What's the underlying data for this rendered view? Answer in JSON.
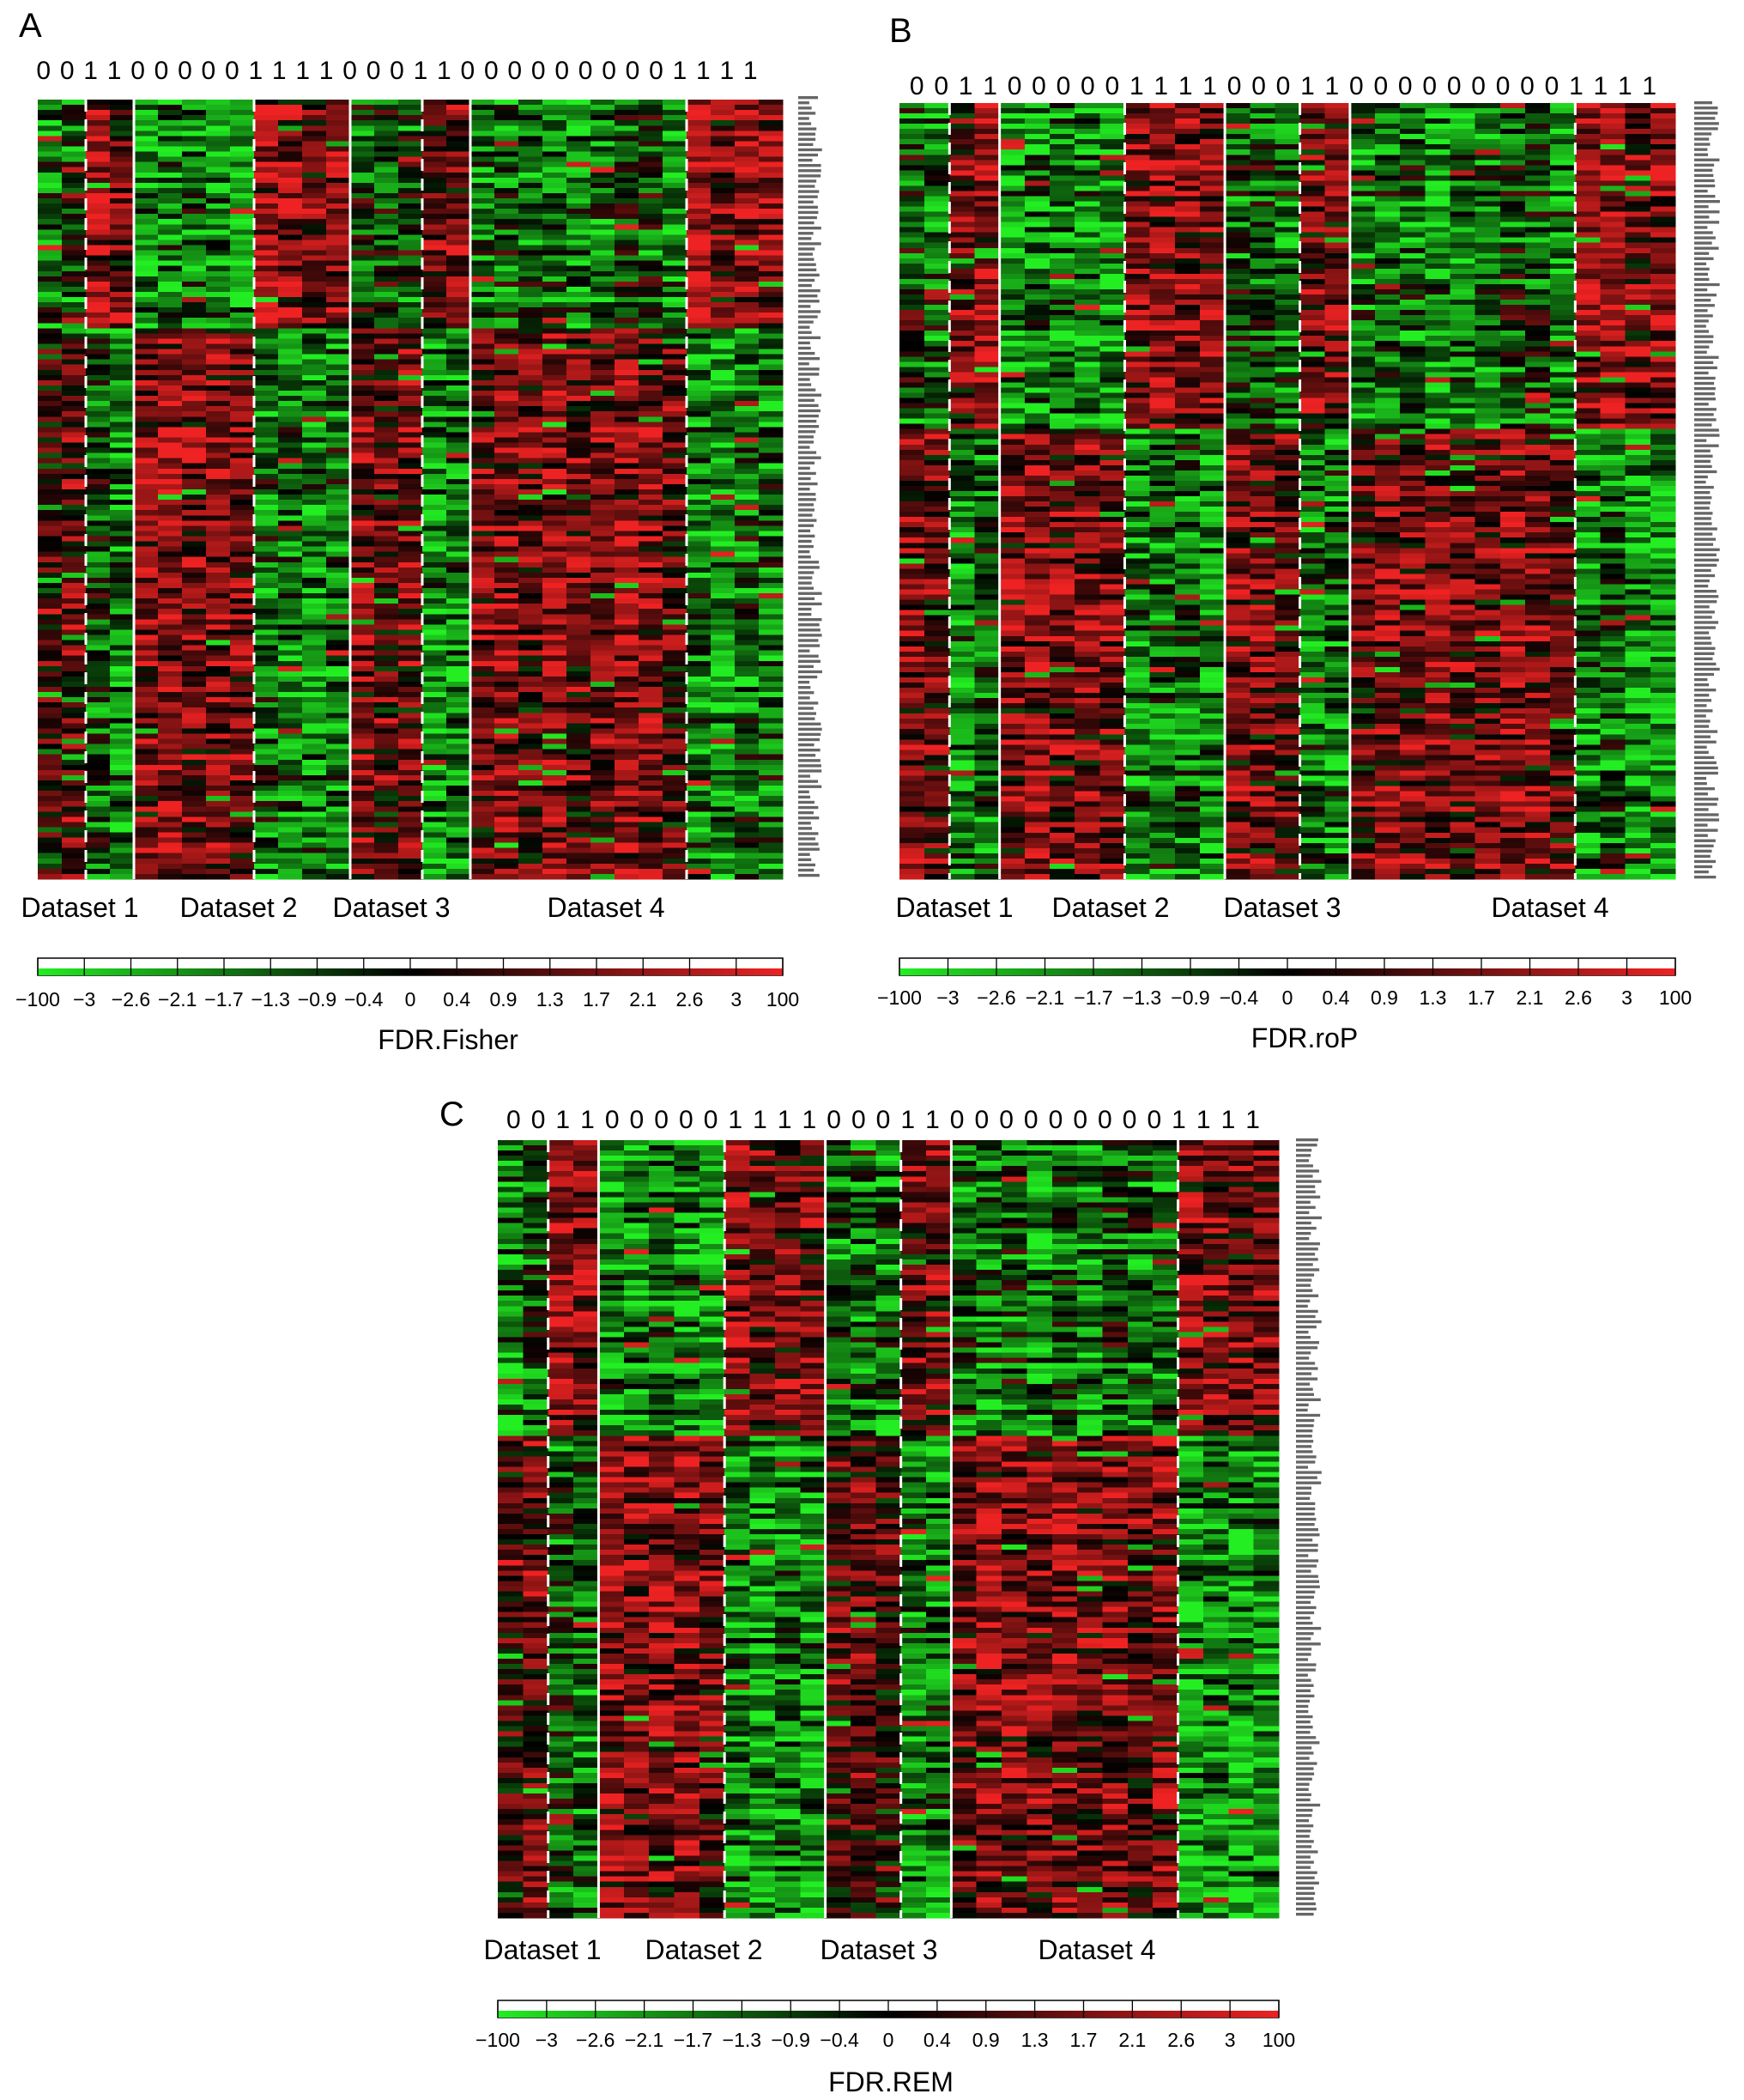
{
  "chart_data": [
    {
      "type": "heatmap",
      "panel": "A",
      "group_labels": [
        "0",
        "0",
        "1",
        "1",
        "0",
        "0",
        "0",
        "0",
        "0",
        "1",
        "1",
        "1",
        "1",
        "0",
        "0",
        "0",
        "1",
        "1",
        "0",
        "0",
        "0",
        "0",
        "0",
        "0",
        "0",
        "0",
        "0",
        "1",
        "1",
        "1",
        "1"
      ],
      "dataset_labels": [
        "Dataset 1",
        "Dataset 2",
        "Dataset 3",
        "Dataset 4"
      ],
      "dataset_column_counts": [
        4,
        9,
        5,
        13
      ],
      "colorbar_label": "FDR.Fisher",
      "colorbar_ticks": [
        "−100",
        "−3",
        "−2.6",
        "−2.1",
        "−1.7",
        "−1.3",
        "−0.9",
        "−0.4",
        "0",
        "0.4",
        "0.9",
        "1.3",
        "1.7",
        "2.1",
        "2.6",
        "3",
        "100"
      ],
      "colorbar_colors": [
        "#22ee22",
        "#000000",
        "#ee2222"
      ]
    },
    {
      "type": "heatmap",
      "panel": "B",
      "group_labels": [
        "0",
        "0",
        "1",
        "1",
        "0",
        "0",
        "0",
        "0",
        "0",
        "1",
        "1",
        "1",
        "1",
        "0",
        "0",
        "0",
        "1",
        "1",
        "0",
        "0",
        "0",
        "0",
        "0",
        "0",
        "0",
        "0",
        "0",
        "1",
        "1",
        "1",
        "1"
      ],
      "dataset_labels": [
        "Dataset 1",
        "Dataset 2",
        "Dataset 3",
        "Dataset 4"
      ],
      "dataset_column_counts": [
        4,
        9,
        5,
        13
      ],
      "colorbar_label": "FDR.roP",
      "colorbar_ticks": [
        "−100",
        "−3",
        "−2.6",
        "−2.1",
        "−1.7",
        "−1.3",
        "−0.9",
        "−0.4",
        "0",
        "0.4",
        "0.9",
        "1.3",
        "1.7",
        "2.1",
        "2.6",
        "3",
        "100"
      ],
      "colorbar_colors": [
        "#22ee22",
        "#000000",
        "#ee2222"
      ]
    },
    {
      "type": "heatmap",
      "panel": "C",
      "group_labels": [
        "0",
        "0",
        "1",
        "1",
        "0",
        "0",
        "0",
        "0",
        "0",
        "1",
        "1",
        "1",
        "1",
        "0",
        "0",
        "0",
        "1",
        "1",
        "0",
        "0",
        "0",
        "0",
        "0",
        "0",
        "0",
        "0",
        "0",
        "1",
        "1",
        "1",
        "1"
      ],
      "dataset_labels": [
        "Dataset 1",
        "Dataset 2",
        "Dataset 3",
        "Dataset 4"
      ],
      "dataset_column_counts": [
        4,
        9,
        5,
        13
      ],
      "colorbar_label": "FDR.REM",
      "colorbar_ticks": [
        "−100",
        "−3",
        "−2.6",
        "−2.1",
        "−1.7",
        "−1.3",
        "−0.9",
        "−0.4",
        "0",
        "0.4",
        "0.9",
        "1.3",
        "1.7",
        "2.1",
        "2.6",
        "3",
        "100"
      ],
      "colorbar_colors": [
        "#22ee22",
        "#000000",
        "#ee2222"
      ]
    }
  ],
  "panels": {
    "a": {
      "label": "A"
    },
    "b": {
      "label": "B"
    },
    "c": {
      "label": "C"
    }
  }
}
